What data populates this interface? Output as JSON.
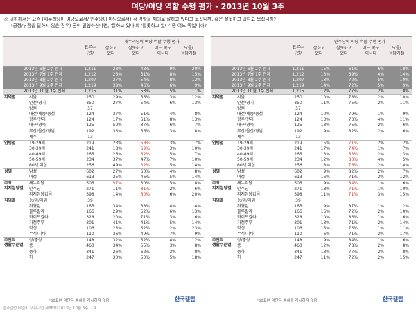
{
  "title": "여당/야당 역할 수행 평가 - 2013년 10월 3주",
  "question": {
    "line1": "◎ 귀하께서는 요즘 (새누리당이 여당으로서/ 민주당이 야당으로서) 각 역할을 제대로 잘하고 있다고 보십니까, 혹은 잘못하고 있다고 보십니까?",
    "line2": "(긍정/부정을 답하지 않은 경우) 굳이 말씀하신다면, '잘하고 있다'와 '잘못하고 있다' 중 어느 쪽입니까?"
  },
  "panels": [
    {
      "party_label": "새누리당의 여당 역할 수행 평가",
      "sample_label": "표본수\n(명)",
      "cols": [
        "잘하고\n있다",
        "잘못하고\n있다",
        "어느 쪽도\n아니다",
        "모름/\n응답거절"
      ],
      "trend": [
        {
          "label": "2013년 6월 2주 전체",
          "n": "1,211",
          "v": [
            "28%",
            "43%",
            "9%",
            "20%"
          ]
        },
        {
          "label": "2013년 7월 1주 전체",
          "n": "1,212",
          "v": [
            "26%",
            "51%",
            "8%",
            "15%"
          ]
        },
        {
          "label": "2013년 8월 2주 전체",
          "n": "1,207",
          "v": [
            "27%",
            "54%",
            "8%",
            "12%"
          ]
        },
        {
          "label": "2013년 9월 2주 전체",
          "n": "1,219",
          "v": [
            "38%",
            "46%",
            "6%",
            "9%"
          ]
        },
        {
          "label": "2013년 10월 3주 전체",
          "n": "1,215",
          "v": [
            "31%",
            "53%",
            "5%",
            "11%"
          ],
          "current": true
        }
      ],
      "groups": [
        {
          "name": "지역별",
          "rows": [
            {
              "label": "서울",
              "n": "250",
              "v": [
                "29%",
                "56%",
                "3%",
                "12%"
              ]
            },
            {
              "label": "인천/경기",
              "n": "350",
              "v": [
                "27%",
                "54%",
                "6%",
                "13%"
              ]
            },
            {
              "label": "강원",
              "n": "37",
              "v": [
                "",
                "",
                "",
                ""
              ]
            },
            {
              "label": "대전/세종/충청",
              "n": "124",
              "v": [
                "37%",
                "51%",
                "4%",
                "8%"
              ]
            },
            {
              "label": "광주/전라",
              "n": "124",
              "v": [
                "17%",
                "61%",
                "8%",
                "13%"
              ]
            },
            {
              "label": "대구/경북",
              "n": "125",
              "v": [
                "50%",
                "37%",
                "6%",
                "7%"
              ]
            },
            {
              "label": "부산/울산/경남",
              "n": "192",
              "v": [
                "33%",
                "56%",
                "3%",
                "8%"
              ]
            },
            {
              "label": "제주",
              "n": "13",
              "v": [
                "",
                "",
                "",
                ""
              ]
            }
          ]
        },
        {
          "name": "연령별",
          "rows": [
            {
              "label": "19-29세",
              "n": "219",
              "v": [
                "23%",
                "58%",
                "3%",
                "17%"
              ],
              "hl": [
                1
              ]
            },
            {
              "label": "30-39세",
              "n": "241",
              "v": [
                "18%",
                "69%",
                "3%",
                "10%"
              ],
              "hl": [
                1
              ]
            },
            {
              "label": "40-49세",
              "n": "265",
              "v": [
                "26%",
                "62%",
                "5%",
                "7%"
              ],
              "hl": [
                1
              ]
            },
            {
              "label": "50-59세",
              "n": "234",
              "v": [
                "37%",
                "47%",
                "7%",
                "10%"
              ]
            },
            {
              "label": "60세 이상",
              "n": "256",
              "v": [
                "49%",
                "32%",
                "5%",
                "14%"
              ],
              "hl": [
                1
              ]
            }
          ]
        },
        {
          "name": "성별",
          "rows": [
            {
              "label": "남성",
              "n": "602",
              "v": [
                "27%",
                "60%",
                "4%",
                "8%"
              ]
            },
            {
              "label": "여성",
              "n": "613",
              "v": [
                "35%",
                "46%",
                "5%",
                "14%"
              ]
            }
          ]
        },
        {
          "name": "주요\n지지정당별",
          "rows": [
            {
              "label": "새누리당",
              "n": "505",
              "v": [
                "57%",
                "30%",
                "5%",
                "8%"
              ],
              "hl": [
                0
              ]
            },
            {
              "label": "민주당",
              "n": "271",
              "v": [
                "11%",
                "81%",
                "2%",
                "6%"
              ],
              "hl": [
                1
              ]
            },
            {
              "label": "지지정당없음",
              "n": "398",
              "v": [
                "14%",
                "60%",
                "6%",
                "20%"
              ],
              "hl": [
                1
              ]
            }
          ]
        },
        {
          "name": "직업별",
          "rows": [
            {
              "label": "농/임/어업",
              "n": "39",
              "v": [
                "",
                "",
                "",
                ""
              ]
            },
            {
              "label": "자영업",
              "n": "165",
              "v": [
                "34%",
                "58%",
                "4%",
                "4%"
              ]
            },
            {
              "label": "블루칼라",
              "n": "166",
              "v": [
                "29%",
                "52%",
                "6%",
                "13%"
              ]
            },
            {
              "label": "화이트칼라",
              "n": "328",
              "v": [
                "20%",
                "71%",
                "3%",
                "6%"
              ]
            },
            {
              "label": "가정주부",
              "n": "301",
              "v": [
                "41%",
                "41%",
                "5%",
                "14%"
              ]
            },
            {
              "label": "학생",
              "n": "106",
              "v": [
                "23%",
                "52%",
                "2%",
                "23%"
              ]
            },
            {
              "label": "무직/기타",
              "n": "110",
              "v": [
                "36%",
                "49%",
                "7%",
                "9%"
              ]
            }
          ]
        },
        {
          "name": "주관적\n생활수준별",
          "rows": [
            {
              "label": "상/중상",
              "n": "148",
              "v": [
                "32%",
                "52%",
                "4%",
                "12%"
              ]
            },
            {
              "label": "중",
              "n": "460",
              "v": [
                "34%",
                "55%",
                "3%",
                "8%"
              ]
            },
            {
              "label": "중하",
              "n": "341",
              "v": [
                "26%",
                "62%",
                "3%",
                "8%"
              ]
            },
            {
              "label": "하",
              "n": "247",
              "v": [
                "30%",
                "50%",
                "5%",
                "18%"
              ]
            }
          ]
        }
      ],
      "footnote": "*50표본 미만은 수치를 게시하지 않음.",
      "logo": "한국갤럽"
    },
    {
      "party_label": "민주당의 야당 역할 수행 평가",
      "sample_label": "표본수\n(명)",
      "cols": [
        "잘하고\n있다",
        "잘못하고\n있다",
        "어느 쪽도\n아니다",
        "모름/\n응답거절"
      ],
      "trend": [
        {
          "label": "2013년 6월 2주 전체",
          "n": "1,211",
          "v": [
            "15%",
            "61%",
            "6%",
            "18%"
          ]
        },
        {
          "label": "2013년 7월 1주 전체",
          "n": "1,212",
          "v": [
            "13%",
            "69%",
            "4%",
            "14%"
          ]
        },
        {
          "label": "2013년 8월 2주 전체",
          "n": "1,207",
          "v": [
            "13%",
            "72%",
            "5%",
            "10%"
          ]
        },
        {
          "label": "2013년 9월 2주 전체",
          "n": "1,219",
          "v": [
            "14%",
            "72%",
            "5%",
            "9%"
          ]
        },
        {
          "label": "2013년 10월 3주 전체",
          "n": "1,215",
          "v": [
            "12%",
            "77%",
            "2%",
            "10%"
          ],
          "current": true
        }
      ],
      "groups": [
        {
          "name": "지역별",
          "rows": [
            {
              "label": "서울",
              "n": "250",
              "v": [
                "10%",
                "78%",
                "2%",
                "10%"
              ]
            },
            {
              "label": "인천/경기",
              "n": "350",
              "v": [
                "11%",
                "75%",
                "2%",
                "11%"
              ]
            },
            {
              "label": "강원",
              "n": "37",
              "v": [
                "",
                "",
                "",
                ""
              ]
            },
            {
              "label": "대전/세종/충청",
              "n": "124",
              "v": [
                "10%",
                "79%",
                "1%",
                "9%"
              ]
            },
            {
              "label": "광주/전라",
              "n": "124",
              "v": [
                "13%",
                "73%",
                "4%",
                "11%"
              ]
            },
            {
              "label": "대구/경북",
              "n": "125",
              "v": [
                "13%",
                "75%",
                "2%",
                "6%"
              ]
            },
            {
              "label": "부산/울산/경남",
              "n": "192",
              "v": [
                "9%",
                "82%",
                "2%",
                "6%"
              ]
            },
            {
              "label": "제주",
              "n": "13",
              "v": [
                "",
                "",
                "",
                ""
              ]
            }
          ]
        },
        {
          "name": "연령별",
          "rows": [
            {
              "label": "19-29세",
              "n": "219",
              "v": [
                "15%",
                "71%",
                "2%",
                "12%"
              ],
              "hl": [
                1
              ]
            },
            {
              "label": "30-39세",
              "n": "241",
              "v": [
                "17%",
                "74%",
                "1%",
                "7%"
              ],
              "hl": [
                1
              ]
            },
            {
              "label": "40-49세",
              "n": "265",
              "v": [
                "13%",
                "83%",
                "2%",
                "3%"
              ],
              "hl": [
                1
              ]
            },
            {
              "label": "50-59세",
              "n": "234",
              "v": [
                "12%",
                "80%",
                "4%",
                "5%"
              ],
              "hl": [
                1
              ]
            },
            {
              "label": "60세 이상",
              "n": "256",
              "v": [
                "8%",
                "76%",
                "2%",
                "14%"
              ],
              "hl": [
                1
              ]
            }
          ]
        },
        {
          "name": "성별",
          "rows": [
            {
              "label": "남성",
              "n": "602",
              "v": [
                "9%",
                "82%",
                "2%",
                "7%"
              ]
            },
            {
              "label": "여성",
              "n": "613",
              "v": [
                "16%",
                "71%",
                "2%",
                "12%"
              ]
            }
          ]
        },
        {
          "name": "주요\n지지정당별",
          "rows": [
            {
              "label": "새누리당",
              "n": "505",
              "v": [
                "9%",
                "84%",
                "1%",
                "6%"
              ],
              "hl": [
                1
              ]
            },
            {
              "label": "민주당",
              "n": "271",
              "v": [
                "18%",
                "71%",
                "1%",
                "10%"
              ],
              "hl": [
                1
              ]
            },
            {
              "label": "지지정당없음",
              "n": "398",
              "v": [
                "11%",
                "71%",
                "3%",
                "15%"
              ],
              "hl": [
                1
              ]
            }
          ]
        },
        {
          "name": "직업별",
          "rows": [
            {
              "label": "농/임/어업",
              "n": "39",
              "v": [
                "",
                "",
                "",
                ""
              ]
            },
            {
              "label": "자영업",
              "n": "165",
              "v": [
                "9%",
                "87%",
                "1%",
                "2%"
              ]
            },
            {
              "label": "블루칼라",
              "n": "166",
              "v": [
                "16%",
                "72%",
                "2%",
                "10%"
              ]
            },
            {
              "label": "화이트칼라",
              "n": "328",
              "v": [
                "10%",
                "83%",
                "1%",
                "6%"
              ]
            },
            {
              "label": "가정주부",
              "n": "301",
              "v": [
                "13%",
                "71%",
                "2%",
                "14%"
              ]
            },
            {
              "label": "학생",
              "n": "106",
              "v": [
                "15%",
                "73%",
                "1%",
                "11%"
              ]
            },
            {
              "label": "무직/기타",
              "n": "110",
              "v": [
                "6%",
                "71%",
                "2%",
                "17%"
              ]
            }
          ]
        },
        {
          "name": "주관적\n생활수준별",
          "rows": [
            {
              "label": "상/중상",
              "n": "148",
              "v": [
                "9%",
                "84%",
                "1%",
                "6%"
              ]
            },
            {
              "label": "중",
              "n": "460",
              "v": [
                "12%",
                "78%",
                "2%",
                "8%"
              ]
            },
            {
              "label": "중하",
              "n": "341",
              "v": [
                "13%",
                "77%",
                "2%",
                "8%"
              ]
            },
            {
              "label": "하",
              "n": "247",
              "v": [
                "11%",
                "72%",
                "2%",
                "15%"
              ]
            }
          ]
        }
      ],
      "footnote": "*50표본 미만은 수치를 게시하지 않음.",
      "logo": "한국갤럽"
    }
  ],
  "source": "한국갤럽 데일리 오피니언 제88호(2013년 10월 3주) - 9"
}
